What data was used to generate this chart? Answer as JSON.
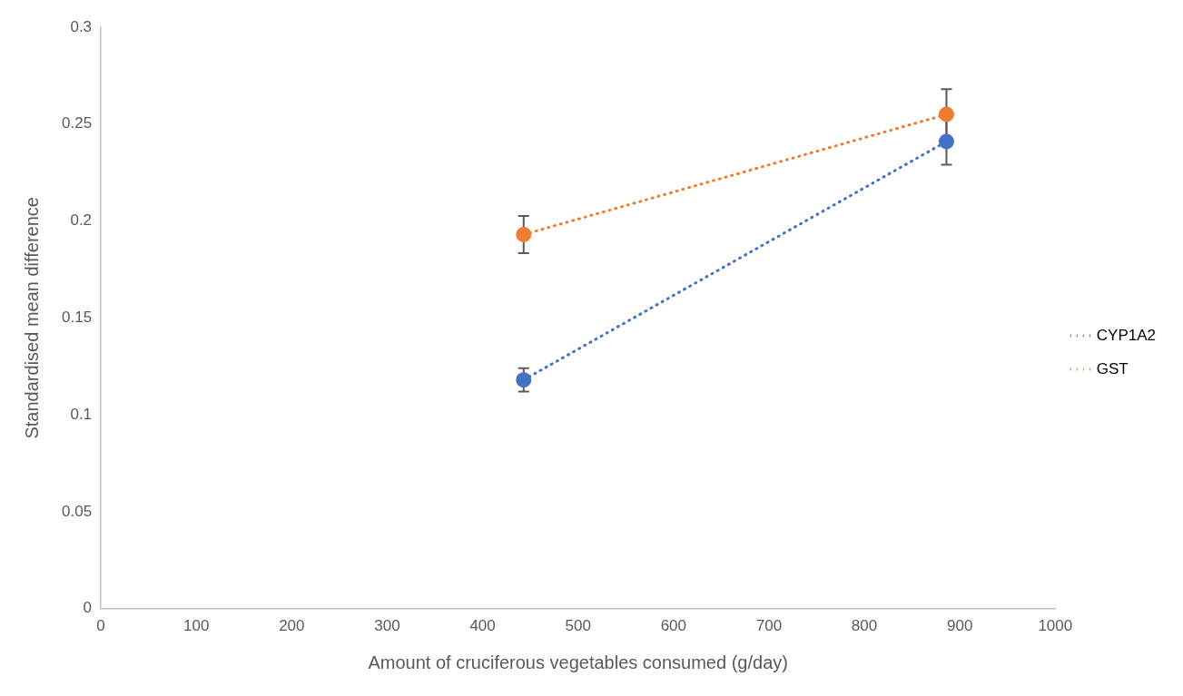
{
  "chart_data": {
    "type": "line",
    "xlabel": "Amount of cruciferous vegetables consumed (g/day)",
    "ylabel": "Standardised mean difference",
    "x": [
      443,
      886
    ],
    "xlim": [
      0,
      1000
    ],
    "xticks": [
      0,
      100,
      200,
      300,
      400,
      500,
      600,
      700,
      800,
      900,
      1000
    ],
    "ylim": [
      0,
      0.3
    ],
    "yticks": [
      0,
      0.05,
      0.1,
      0.15,
      0.2,
      0.25,
      0.3
    ],
    "grid": false,
    "legend": "right",
    "marker": "circle",
    "line_style": "dotted",
    "series": [
      {
        "name": "CYP1A2",
        "color": "#4472c4",
        "values": [
          0.118,
          0.241
        ],
        "errors": [
          0.006,
          0.012
        ]
      },
      {
        "name": "GST",
        "color": "#ed7d31",
        "values": [
          0.193,
          0.255
        ],
        "errors": [
          0.0096,
          0.013
        ]
      }
    ]
  }
}
